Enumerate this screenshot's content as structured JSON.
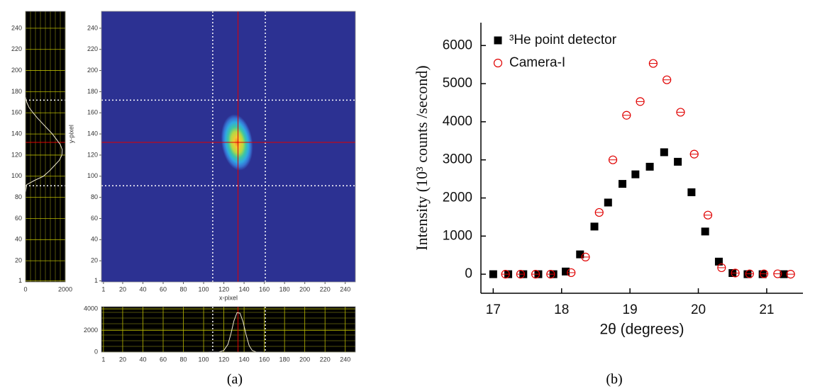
{
  "chart_data": [
    {
      "type": "beam-image",
      "x_label": "x-pixel",
      "y_label": "y-pixel",
      "xlim": [
        -1,
        250
      ],
      "ylim": [
        0,
        256
      ],
      "xticks": [
        1,
        20,
        40,
        60,
        80,
        100,
        120,
        140,
        160,
        180,
        200,
        220,
        240
      ],
      "yticks": [
        1,
        20,
        40,
        60,
        80,
        100,
        120,
        140,
        160,
        180,
        200,
        220,
        240
      ],
      "crosshair": {
        "x": 134,
        "y": 132
      },
      "roi": {
        "x": [
          109,
          161
        ],
        "y": [
          91,
          172
        ]
      },
      "spot": {
        "x": 133,
        "y": 132
      },
      "y_profile": {
        "xlim": [
          0,
          2000
        ],
        "xticks": [
          0,
          2000
        ],
        "y": [
          85,
          92,
          96,
          100,
          105,
          110,
          115,
          120,
          125,
          130,
          135,
          140,
          145,
          150,
          155,
          160,
          165,
          170,
          175
        ],
        "values": [
          0,
          60,
          450,
          900,
          1200,
          1450,
          1700,
          1830,
          1850,
          1750,
          1550,
          1350,
          1100,
          850,
          600,
          380,
          180,
          60,
          0
        ]
      },
      "x_profile": {
        "ylim": [
          0,
          4200
        ],
        "yticks": [
          0,
          2000,
          4000
        ],
        "x": [
          105,
          115,
          120,
          124,
          127,
          130,
          133,
          136,
          139,
          142,
          145,
          148,
          152,
          158
        ],
        "values": [
          0,
          0,
          150,
          700,
          1700,
          2900,
          3650,
          3600,
          2800,
          1600,
          600,
          150,
          0,
          0
        ]
      },
      "caption": "(a)"
    },
    {
      "type": "scatter",
      "x_label": "2θ (degrees)",
      "y_label": "Intensity (10³ counts /second)",
      "xlim": [
        16.82,
        21.53
      ],
      "ylim": [
        -500,
        6600
      ],
      "xticks": [
        17,
        18,
        19,
        20,
        21
      ],
      "yticks": [
        0,
        1000,
        2000,
        3000,
        4000,
        5000,
        6000
      ],
      "legend": "upper left",
      "series": [
        {
          "name": "³He point detector",
          "color": "#000000",
          "marker": "square",
          "x": [
            17.0,
            17.22,
            17.44,
            17.66,
            17.88,
            18.06,
            18.27,
            18.48,
            18.68,
            18.89,
            19.08,
            19.29,
            19.5,
            19.7,
            19.9,
            20.1,
            20.3,
            20.5,
            20.72,
            20.94,
            21.25
          ],
          "values": [
            0,
            0,
            0,
            0,
            0,
            70,
            520,
            1250,
            1880,
            2370,
            2620,
            2820,
            3200,
            2950,
            2150,
            1120,
            330,
            30,
            0,
            0,
            0
          ]
        },
        {
          "name": "Camera-I",
          "color": "#e00000",
          "marker": "circle",
          "x": [
            17.18,
            17.4,
            17.62,
            17.84,
            18.14,
            18.35,
            18.55,
            18.75,
            18.95,
            19.15,
            19.34,
            19.54,
            19.74,
            19.94,
            20.14,
            20.34,
            20.54,
            20.75,
            20.96,
            21.16,
            21.35
          ],
          "values": [
            0,
            0,
            0,
            0,
            40,
            450,
            1620,
            3000,
            4170,
            4530,
            5530,
            5100,
            4250,
            3150,
            1550,
            170,
            30,
            10,
            10,
            10,
            0
          ]
        }
      ],
      "caption": "(b)"
    }
  ]
}
